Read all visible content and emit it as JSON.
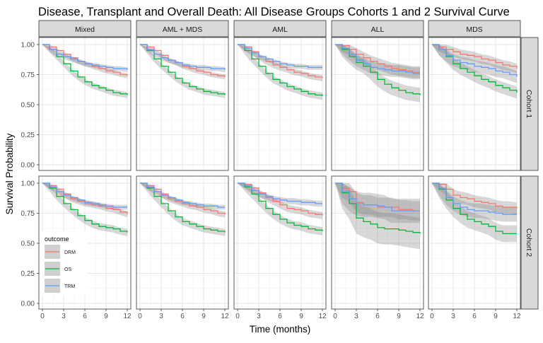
{
  "chart_data": {
    "type": "line",
    "title": "Disease, Transplant and Overall Death: All Disease Groups Cohorts 1 and 2 Survival Curve",
    "xlabel": "Time (months)",
    "ylabel": "Survival Probability",
    "xlim": [
      0,
      12
    ],
    "ylim": [
      0,
      1
    ],
    "x_ticks": [
      "0",
      "3",
      "6",
      "9",
      "12"
    ],
    "y_ticks": [
      "0.00",
      "0.25",
      "0.50",
      "0.75",
      "1.00"
    ],
    "grid": true,
    "legend": {
      "title": "outcome",
      "placement": "inside-bottom-left",
      "entries": [
        {
          "name": "DRM",
          "color": "#F8766D"
        },
        {
          "name": "OS",
          "color": "#00BA38"
        },
        {
          "name": "TRM",
          "color": "#619CFF"
        }
      ]
    },
    "column_facets": [
      "Mixed",
      "AML + MDS",
      "AML",
      "ALL",
      "MDS"
    ],
    "row_facets": [
      "Cohort 1",
      "Cohort 2"
    ],
    "x": [
      0,
      1,
      2,
      3,
      4,
      5,
      6,
      7,
      8,
      9,
      10,
      11,
      12
    ],
    "panels": [
      {
        "row": "Cohort 1",
        "col": "Mixed",
        "series": [
          {
            "name": "DRM",
            "values": [
              1.0,
              0.98,
              0.95,
              0.92,
              0.89,
              0.86,
              0.84,
              0.82,
              0.8,
              0.78,
              0.77,
              0.75,
              0.74
            ],
            "band": 0.02
          },
          {
            "name": "OS",
            "values": [
              1.0,
              0.96,
              0.9,
              0.84,
              0.78,
              0.73,
              0.69,
              0.66,
              0.64,
              0.62,
              0.6,
              0.59,
              0.58
            ],
            "band": 0.025
          },
          {
            "name": "TRM",
            "values": [
              1.0,
              0.96,
              0.92,
              0.9,
              0.88,
              0.86,
              0.84,
              0.83,
              0.82,
              0.81,
              0.8,
              0.8,
              0.79
            ],
            "band": 0.02
          }
        ]
      },
      {
        "row": "Cohort 1",
        "col": "AML + MDS",
        "series": [
          {
            "name": "DRM",
            "values": [
              1.0,
              0.98,
              0.95,
              0.91,
              0.87,
              0.85,
              0.82,
              0.8,
              0.78,
              0.77,
              0.75,
              0.74,
              0.73
            ],
            "band": 0.02
          },
          {
            "name": "OS",
            "values": [
              1.0,
              0.95,
              0.88,
              0.82,
              0.77,
              0.72,
              0.68,
              0.65,
              0.63,
              0.61,
              0.6,
              0.59,
              0.58
            ],
            "band": 0.025
          },
          {
            "name": "TRM",
            "values": [
              1.0,
              0.96,
              0.92,
              0.89,
              0.87,
              0.85,
              0.83,
              0.82,
              0.81,
              0.81,
              0.8,
              0.8,
              0.79
            ],
            "band": 0.02
          }
        ]
      },
      {
        "row": "Cohort 1",
        "col": "AML",
        "series": [
          {
            "name": "DRM",
            "values": [
              1.0,
              0.98,
              0.94,
              0.9,
              0.86,
              0.83,
              0.81,
              0.79,
              0.77,
              0.76,
              0.74,
              0.73,
              0.72
            ],
            "band": 0.025
          },
          {
            "name": "OS",
            "values": [
              1.0,
              0.95,
              0.88,
              0.82,
              0.76,
              0.71,
              0.68,
              0.65,
              0.63,
              0.61,
              0.59,
              0.58,
              0.57
            ],
            "band": 0.03
          },
          {
            "name": "TRM",
            "values": [
              1.0,
              0.97,
              0.93,
              0.9,
              0.88,
              0.86,
              0.84,
              0.83,
              0.82,
              0.82,
              0.81,
              0.81,
              0.81
            ],
            "band": 0.02
          }
        ]
      },
      {
        "row": "Cohort 1",
        "col": "ALL",
        "series": [
          {
            "name": "DRM",
            "values": [
              1.0,
              0.99,
              0.96,
              0.92,
              0.89,
              0.86,
              0.84,
              0.82,
              0.8,
              0.79,
              0.78,
              0.77,
              0.77
            ],
            "band": 0.05
          },
          {
            "name": "OS",
            "values": [
              1.0,
              0.96,
              0.9,
              0.85,
              0.82,
              0.77,
              0.71,
              0.67,
              0.64,
              0.62,
              0.6,
              0.59,
              0.58
            ],
            "band": 0.06
          },
          {
            "name": "TRM",
            "values": [
              1.0,
              0.97,
              0.92,
              0.87,
              0.84,
              0.81,
              0.8,
              0.79,
              0.78,
              0.78,
              0.77,
              0.76,
              0.76
            ],
            "band": 0.05
          }
        ]
      },
      {
        "row": "Cohort 1",
        "col": "MDS",
        "series": [
          {
            "name": "DRM",
            "values": [
              1.0,
              0.98,
              0.96,
              0.94,
              0.92,
              0.91,
              0.9,
              0.88,
              0.87,
              0.85,
              0.83,
              0.82,
              0.8
            ],
            "band": 0.04
          },
          {
            "name": "OS",
            "values": [
              1.0,
              0.96,
              0.9,
              0.84,
              0.8,
              0.77,
              0.74,
              0.71,
              0.69,
              0.66,
              0.64,
              0.62,
              0.6
            ],
            "band": 0.05
          },
          {
            "name": "TRM",
            "values": [
              1.0,
              0.96,
              0.91,
              0.87,
              0.85,
              0.84,
              0.82,
              0.81,
              0.8,
              0.78,
              0.77,
              0.75,
              0.73
            ],
            "band": 0.05
          }
        ]
      },
      {
        "row": "Cohort 2",
        "col": "Mixed",
        "series": [
          {
            "name": "DRM",
            "values": [
              1.0,
              0.98,
              0.95,
              0.91,
              0.87,
              0.85,
              0.83,
              0.82,
              0.81,
              0.79,
              0.78,
              0.76,
              0.74
            ],
            "band": 0.025
          },
          {
            "name": "OS",
            "values": [
              1.0,
              0.96,
              0.89,
              0.83,
              0.78,
              0.73,
              0.69,
              0.66,
              0.64,
              0.63,
              0.62,
              0.6,
              0.59
            ],
            "band": 0.03
          },
          {
            "name": "TRM",
            "values": [
              1.0,
              0.97,
              0.93,
              0.9,
              0.88,
              0.86,
              0.84,
              0.83,
              0.82,
              0.81,
              0.8,
              0.8,
              0.8
            ],
            "band": 0.02
          }
        ]
      },
      {
        "row": "Cohort 2",
        "col": "AML + MDS",
        "series": [
          {
            "name": "DRM",
            "values": [
              1.0,
              0.98,
              0.95,
              0.91,
              0.87,
              0.85,
              0.83,
              0.81,
              0.8,
              0.78,
              0.77,
              0.75,
              0.74
            ],
            "band": 0.025
          },
          {
            "name": "OS",
            "values": [
              1.0,
              0.96,
              0.89,
              0.83,
              0.77,
              0.72,
              0.68,
              0.66,
              0.64,
              0.62,
              0.61,
              0.6,
              0.59
            ],
            "band": 0.03
          },
          {
            "name": "TRM",
            "values": [
              1.0,
              0.97,
              0.93,
              0.9,
              0.88,
              0.86,
              0.84,
              0.83,
              0.82,
              0.81,
              0.81,
              0.8,
              0.8
            ],
            "band": 0.02
          }
        ]
      },
      {
        "row": "Cohort 2",
        "col": "AML",
        "series": [
          {
            "name": "DRM",
            "values": [
              1.0,
              0.99,
              0.96,
              0.92,
              0.88,
              0.85,
              0.82,
              0.79,
              0.78,
              0.77,
              0.75,
              0.74,
              0.73
            ],
            "band": 0.03
          },
          {
            "name": "OS",
            "values": [
              1.0,
              0.97,
              0.91,
              0.85,
              0.79,
              0.74,
              0.7,
              0.67,
              0.65,
              0.64,
              0.62,
              0.61,
              0.6
            ],
            "band": 0.035
          },
          {
            "name": "TRM",
            "values": [
              1.0,
              0.98,
              0.94,
              0.91,
              0.89,
              0.87,
              0.86,
              0.85,
              0.85,
              0.84,
              0.84,
              0.83,
              0.83
            ],
            "band": 0.025
          }
        ]
      },
      {
        "row": "Cohort 2",
        "col": "ALL",
        "series": [
          {
            "name": "DRM",
            "values": [
              1.0,
              0.96,
              0.93,
              0.84,
              0.82,
              0.82,
              0.8,
              0.8,
              0.8,
              0.78,
              0.78,
              0.77,
              0.77
            ],
            "band": 0.08
          },
          {
            "name": "OS",
            "values": [
              1.0,
              0.92,
              0.83,
              0.71,
              0.68,
              0.66,
              0.63,
              0.62,
              0.62,
              0.61,
              0.6,
              0.59,
              0.58
            ],
            "band": 0.13
          },
          {
            "name": "TRM",
            "values": [
              1.0,
              0.93,
              0.87,
              0.83,
              0.82,
              0.82,
              0.81,
              0.8,
              0.77,
              0.77,
              0.77,
              0.77,
              0.77
            ],
            "band": 0.1
          }
        ]
      },
      {
        "row": "Cohort 2",
        "col": "MDS",
        "series": [
          {
            "name": "DRM",
            "values": [
              1.0,
              0.99,
              0.95,
              0.9,
              0.88,
              0.87,
              0.85,
              0.84,
              0.83,
              0.81,
              0.8,
              0.8,
              0.79
            ],
            "band": 0.05
          },
          {
            "name": "OS",
            "values": [
              1.0,
              0.95,
              0.86,
              0.79,
              0.74,
              0.7,
              0.68,
              0.66,
              0.64,
              0.6,
              0.58,
              0.58,
              0.58
            ],
            "band": 0.07
          },
          {
            "name": "TRM",
            "values": [
              1.0,
              0.96,
              0.88,
              0.83,
              0.8,
              0.78,
              0.77,
              0.77,
              0.76,
              0.75,
              0.74,
              0.74,
              0.74
            ],
            "band": 0.06
          }
        ]
      }
    ]
  }
}
